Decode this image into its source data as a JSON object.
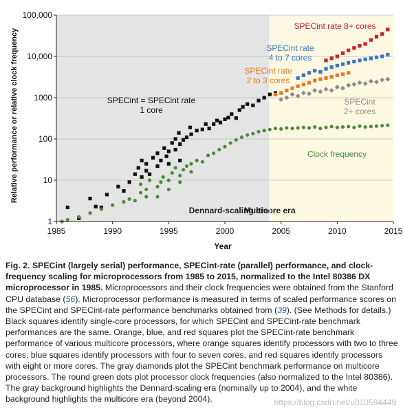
{
  "chart_data": {
    "type": "scatter",
    "title": "",
    "xlabel": "Year",
    "ylabel": "Relative performance or relative clock frequency",
    "xlim": [
      1985,
      2015
    ],
    "ylim": [
      1,
      100000
    ],
    "yscale": "log",
    "xticks": [
      "1985",
      "1990",
      "1995",
      "2000",
      "2005",
      "2010",
      "2015"
    ],
    "yticks": [
      "1",
      "10",
      "100",
      "1000",
      "10,000",
      "100,000"
    ],
    "grid": true,
    "regions": [
      {
        "label": "Dennard-scaling era",
        "from": 1985,
        "to": 2004,
        "color": "#e4e4e4"
      },
      {
        "label": "Multicore era",
        "from": 2004,
        "to": 2015,
        "color": "#fdf8e2"
      }
    ],
    "series": [
      {
        "name": "SPECint = SPECint rate 1 core",
        "label_lines": [
          "SPECint = SPECint rate",
          "1 core"
        ],
        "color": "#111111",
        "marker": "square",
        "points": [
          [
            1986.0,
            2.2
          ],
          [
            1987.0,
            1.2
          ],
          [
            1988.0,
            3.6
          ],
          [
            1988.5,
            2.3
          ],
          [
            1989.0,
            2.2
          ],
          [
            1989.5,
            4.5
          ],
          [
            1990.5,
            7
          ],
          [
            1991.0,
            5.5
          ],
          [
            1991.5,
            9
          ],
          [
            1992.0,
            14
          ],
          [
            1992.3,
            20
          ],
          [
            1992.6,
            30
          ],
          [
            1992.6,
            12
          ],
          [
            1993.0,
            25
          ],
          [
            1993.0,
            17
          ],
          [
            1993.3,
            14
          ],
          [
            1993.6,
            35
          ],
          [
            1994.0,
            45
          ],
          [
            1994.0,
            22
          ],
          [
            1994.3,
            30
          ],
          [
            1994.6,
            60
          ],
          [
            1994.8,
            38
          ],
          [
            1995.0,
            25
          ],
          [
            1995.0,
            50
          ],
          [
            1995.3,
            80
          ],
          [
            1995.6,
            100
          ],
          [
            1995.6,
            55
          ],
          [
            1995.9,
            140
          ],
          [
            1996.0,
            30
          ],
          [
            1996.0,
            75
          ],
          [
            1996.3,
            95
          ],
          [
            1996.6,
            110
          ],
          [
            1996.9,
            190
          ],
          [
            1997.0,
            130
          ],
          [
            1997.5,
            160
          ],
          [
            1998.0,
            170
          ],
          [
            1998.3,
            230
          ],
          [
            1998.6,
            180
          ],
          [
            1999.0,
            230
          ],
          [
            1999.3,
            280
          ],
          [
            1999.6,
            250
          ],
          [
            2000.0,
            300
          ],
          [
            2000.3,
            330
          ],
          [
            2000.6,
            400
          ],
          [
            2001.0,
            320
          ],
          [
            2001.3,
            500
          ],
          [
            2001.6,
            600
          ],
          [
            2002.0,
            700
          ],
          [
            2002.5,
            650
          ],
          [
            2003.0,
            850
          ],
          [
            2003.5,
            1000
          ],
          [
            2004.0,
            1200
          ],
          [
            2004.5,
            1300
          ]
        ]
      },
      {
        "name": "Clock frequency",
        "label_lines": [
          "Clock frequency"
        ],
        "color": "#4e8a3c",
        "marker": "circle",
        "points": [
          [
            1985.5,
            1.0
          ],
          [
            1986.0,
            1.1
          ],
          [
            1987.0,
            1.3
          ],
          [
            1988.0,
            1.6
          ],
          [
            1989.0,
            2.0
          ],
          [
            1990.0,
            2.5
          ],
          [
            1991.0,
            3.0
          ],
          [
            1991.5,
            3.5
          ],
          [
            1992.0,
            3.2
          ],
          [
            1992.5,
            5
          ],
          [
            1992.5,
            8
          ],
          [
            1993.0,
            4
          ],
          [
            1993.0,
            6
          ],
          [
            1993.3,
            10
          ],
          [
            1994.0,
            4
          ],
          [
            1994.0,
            7
          ],
          [
            1994.3,
            9
          ],
          [
            1994.5,
            12
          ],
          [
            1995.0,
            6
          ],
          [
            1995.0,
            10
          ],
          [
            1995.3,
            15
          ],
          [
            1995.6,
            20
          ],
          [
            1996.0,
            9
          ],
          [
            1996.0,
            13
          ],
          [
            1996.3,
            18
          ],
          [
            1996.6,
            22
          ],
          [
            1997.0,
            16
          ],
          [
            1997.0,
            25
          ],
          [
            1997.5,
            30
          ],
          [
            1998.0,
            28
          ],
          [
            1998.5,
            40
          ],
          [
            1999.0,
            45
          ],
          [
            1999.5,
            55
          ],
          [
            2000.0,
            65
          ],
          [
            2000.5,
            80
          ],
          [
            2001.0,
            95
          ],
          [
            2001.5,
            110
          ],
          [
            2002.0,
            125
          ],
          [
            2002.5,
            135
          ],
          [
            2003.0,
            150
          ],
          [
            2003.5,
            160
          ],
          [
            2004.0,
            170
          ],
          [
            2004.5,
            180
          ],
          [
            2005.0,
            175
          ],
          [
            2005.5,
            185
          ],
          [
            2006.0,
            180
          ],
          [
            2006.5,
            185
          ],
          [
            2007.0,
            190
          ],
          [
            2007.5,
            185
          ],
          [
            2008.0,
            195
          ],
          [
            2008.5,
            180
          ],
          [
            2009.0,
            190
          ],
          [
            2009.5,
            200
          ],
          [
            2010.0,
            190
          ],
          [
            2010.5,
            195
          ],
          [
            2011.0,
            200
          ],
          [
            2011.5,
            190
          ],
          [
            2012.0,
            205
          ],
          [
            2012.5,
            195
          ],
          [
            2013.0,
            200
          ],
          [
            2013.5,
            205
          ],
          [
            2014.0,
            210
          ],
          [
            2014.5,
            215
          ]
        ]
      },
      {
        "name": "SPECint 2+ cores",
        "label_lines": [
          "SPECint",
          "2+ cores"
        ],
        "color": "#8c8c8c",
        "marker": "diamond",
        "points": [
          [
            2005.0,
            900
          ],
          [
            2005.5,
            1000
          ],
          [
            2006.0,
            1200
          ],
          [
            2006.5,
            1100
          ],
          [
            2007.0,
            1300
          ],
          [
            2007.5,
            1250
          ],
          [
            2008.0,
            1500
          ],
          [
            2008.5,
            1400
          ],
          [
            2009.0,
            1600
          ],
          [
            2009.5,
            1500
          ],
          [
            2010.0,
            1800
          ],
          [
            2010.5,
            1700
          ],
          [
            2011.0,
            2000
          ],
          [
            2011.5,
            2100
          ],
          [
            2012.0,
            2300
          ],
          [
            2012.5,
            2200
          ],
          [
            2013.0,
            2500
          ],
          [
            2013.5,
            2400
          ],
          [
            2014.0,
            2700
          ],
          [
            2014.5,
            2800
          ]
        ]
      },
      {
        "name": "SPECint rate 2 to 3 cores",
        "label_lines": [
          "SPECint rate",
          "2 to 3 cores"
        ],
        "color": "#e8791e",
        "marker": "square",
        "points": [
          [
            2004.5,
            1200
          ],
          [
            2005.0,
            1300
          ],
          [
            2005.5,
            1500
          ],
          [
            2006.0,
            1700
          ],
          [
            2006.5,
            1900
          ],
          [
            2007.0,
            2100
          ],
          [
            2007.5,
            2300
          ],
          [
            2008.0,
            2600
          ],
          [
            2008.5,
            2800
          ],
          [
            2009.0,
            3000
          ],
          [
            2009.5,
            3200
          ],
          [
            2010.0,
            3500
          ],
          [
            2010.5,
            3700
          ],
          [
            2011.0,
            4000
          ]
        ]
      },
      {
        "name": "SPECint rate 4 to 7 cores",
        "label_lines": [
          "SPECint rate",
          "4 to 7 cores"
        ],
        "color": "#3a74c9",
        "marker": "square",
        "points": [
          [
            2006.5,
            3000
          ],
          [
            2007.0,
            3500
          ],
          [
            2007.5,
            4000
          ],
          [
            2008.0,
            4500
          ],
          [
            2008.5,
            4200
          ],
          [
            2009.0,
            5000
          ],
          [
            2009.5,
            5500
          ],
          [
            2010.0,
            6000
          ],
          [
            2010.5,
            6500
          ],
          [
            2011.0,
            7000
          ],
          [
            2011.5,
            7500
          ],
          [
            2012.0,
            8000
          ],
          [
            2012.5,
            8500
          ],
          [
            2013.0,
            9000
          ],
          [
            2013.5,
            9500
          ],
          [
            2014.0,
            10000
          ],
          [
            2014.5,
            11000
          ]
        ]
      },
      {
        "name": "SPECint rate 8+ cores",
        "label_lines": [
          "SPECint rate 8+ cores"
        ],
        "color": "#c42127",
        "marker": "square",
        "points": [
          [
            2009.0,
            8000
          ],
          [
            2009.5,
            9000
          ],
          [
            2010.0,
            10000
          ],
          [
            2010.5,
            12000
          ],
          [
            2011.0,
            14000
          ],
          [
            2011.5,
            16000
          ],
          [
            2012.0,
            18000
          ],
          [
            2012.5,
            20000
          ],
          [
            2013.0,
            25000
          ],
          [
            2013.5,
            30000
          ],
          [
            2014.0,
            35000
          ],
          [
            2014.5,
            45000
          ]
        ]
      }
    ]
  },
  "caption": {
    "lead": "Fig. 2. SPECint (largely serial) performance, SPECint-rate (parallel) performance, and clock-frequency scaling for microprocessors from 1985 to 2015, normalized to the Intel 80386 DX microprocessor in 1985.",
    "part1": " Microprocessors and their clock frequencies were obtained from the Stanford CPU database (",
    "ref1": "56",
    "part2": "). Microprocessor performance is measured in terms of scaled performance scores on the SPECint and SPECint-rate performance benchmarks obtained from (",
    "ref2": "39",
    "part3": "). (See Methods for details.) Black squares identify single-core processors, for which SPECint and SPECint-rate benchmark performances are the same. Orange, blue, and red squares plot the SPECint-rate benchmark performance of various multicore processors, where orange squares identify processors with two to three cores, blue squares identify processors with four to seven cores, and red squares identify processors with eight or more cores. The gray diamonds plot the SPECint benchmark performance on multicore processors. The round green dots plot processor clock frequencies (also normalized to the Intel 80386). The gray background highlights the Dennard-scaling era (nominally up to 2004), and the white background highlights the multicore era (beyond 2004)."
  },
  "watermark": "https://blog.csdn.net/u010594449"
}
